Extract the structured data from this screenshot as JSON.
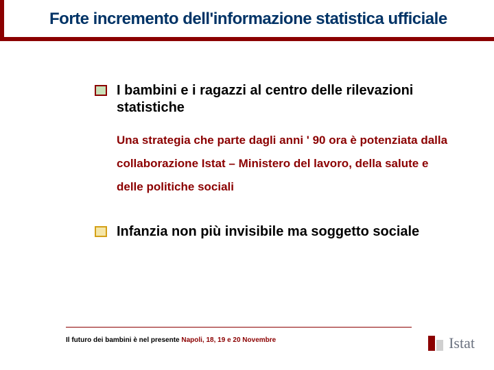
{
  "title": "Forte incremento dell'informazione statistica ufficiale",
  "accent_color": "#8b0000",
  "title_color": "#003366",
  "bullets": [
    {
      "color_border": "#8b0000",
      "color_fill": "#c8e0b8",
      "text": "I bambini e i ragazzi al centro delle rilevazioni statistiche",
      "sub": "Una strategia che parte  dagli anni ' 90 ora è potenziata dalla collaborazione Istat – Ministero del lavoro, della salute e delle politiche sociali"
    },
    {
      "color_border": "#d4a017",
      "color_fill": "#f5e6a8",
      "text": "Infanzia non più invisibile ma soggetto sociale",
      "sub": ""
    }
  ],
  "footer": {
    "black": "Il futuro dei bambini è nel presente",
    "red": "  Napoli, 18, 19  e 20 Novembre"
  },
  "logo": {
    "bar1_color": "#8b0000",
    "bar1_height": 22,
    "bar2_color": "#d0d0d0",
    "bar2_height": 16,
    "text": "Istat"
  }
}
